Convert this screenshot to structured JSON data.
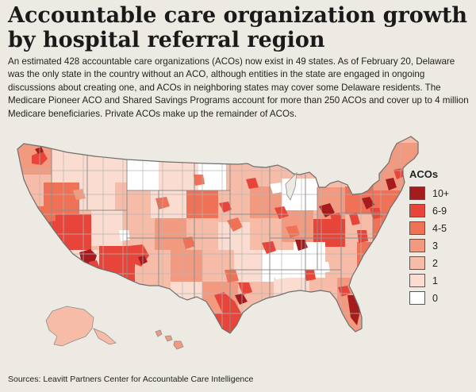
{
  "title": "Accountable care organization growth by hospital referral region",
  "intro": "An estimated 428 accountable care organizations (ACOs) now exist in 49 states. As of February 20, Delaware was the only state in the country without an ACO, although entities in the state are engaged in ongoing discussions about creating one, and ACOs in neighboring states may cover some Delaware residents. The Medicare Pioneer ACO and Shared Savings Programs account for more than 250 ACOs and cover up to 4 million Medicare beneficiaries. Private ACOs make up the remainder of ACOs.",
  "legend": {
    "title": "ACOs",
    "items": [
      {
        "label": "10+",
        "color": "#a51c1f"
      },
      {
        "label": "6-9",
        "color": "#e8453a"
      },
      {
        "label": "4-5",
        "color": "#ef7257"
      },
      {
        "label": "3",
        "color": "#f29a80"
      },
      {
        "label": "2",
        "color": "#f6bca8"
      },
      {
        "label": "1",
        "color": "#fadcd1"
      },
      {
        "label": "0",
        "color": "#ffffff"
      }
    ]
  },
  "source": "Sources: Leavitt Partners Center for Accountable Care Intelligence",
  "colors": {
    "background": "#eceae2",
    "state_border": "#8c8c8c",
    "region_border": "#b5b5b5"
  }
}
